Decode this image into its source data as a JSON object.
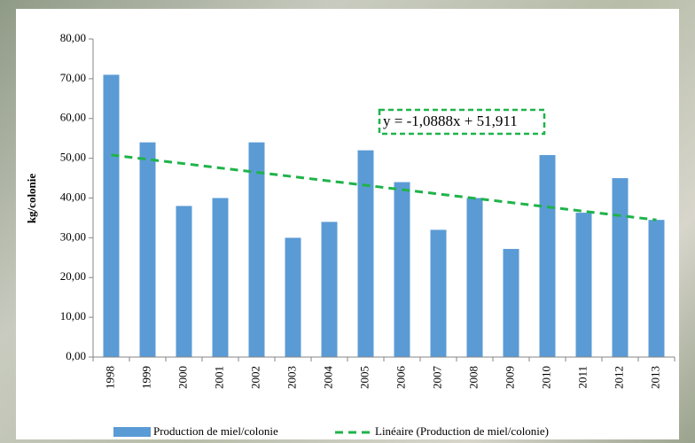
{
  "chart_data": {
    "type": "bar",
    "y_label": "kg/colonie",
    "annotation": "y = -1,0888x + 51,911",
    "categories": [
      "1998",
      "1999",
      "2000",
      "2001",
      "2002",
      "2003",
      "2004",
      "2005",
      "2006",
      "2007",
      "2008",
      "2009",
      "2010",
      "2011",
      "2012",
      "2013"
    ],
    "series": [
      {
        "name": "Production de miel/colonie",
        "color": "#5b9bd5",
        "values": [
          71,
          54,
          38,
          40,
          54,
          30,
          34,
          52,
          44,
          32,
          40,
          27.2,
          50.8,
          36.3,
          45,
          34.5
        ]
      },
      {
        "name": "Linéaire (Production de miel/colonie)",
        "color": "#1fb34a",
        "line_style": "dashed",
        "values": [
          50.82,
          49.73,
          48.65,
          47.56,
          46.47,
          45.38,
          44.29,
          43.2,
          42.11,
          41.02,
          39.93,
          38.85,
          37.76,
          36.67,
          35.58,
          34.49
        ]
      }
    ],
    "ylim": [
      0,
      80
    ],
    "yticks": [
      {
        "value": 0,
        "label": "0,00"
      },
      {
        "value": 10,
        "label": "10,00"
      },
      {
        "value": 20,
        "label": "20,00"
      },
      {
        "value": 30,
        "label": "30,00"
      },
      {
        "value": 40,
        "label": "40,00"
      },
      {
        "value": 50,
        "label": "50,00"
      },
      {
        "value": 60,
        "label": "60,00"
      },
      {
        "value": 70,
        "label": "70,00"
      },
      {
        "value": 80,
        "label": "80,00"
      }
    ],
    "grid": false,
    "legend": "bottom"
  }
}
